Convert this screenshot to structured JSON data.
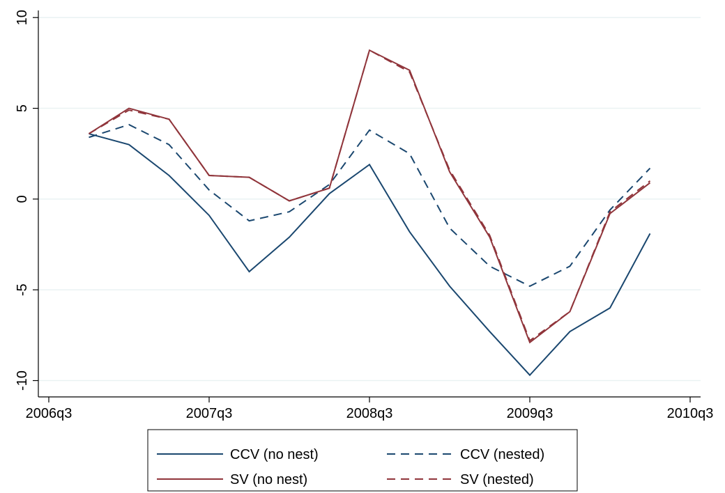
{
  "chart_data": {
    "type": "line",
    "x": [
      "2006q4",
      "2007q1",
      "2007q2",
      "2007q3",
      "2007q4",
      "2008q1",
      "2008q2",
      "2008q3",
      "2008q4",
      "2009q1",
      "2009q2",
      "2009q3",
      "2009q4",
      "2010q1",
      "2010q2"
    ],
    "xlim": [
      "2006q3",
      "2010q3"
    ],
    "xticks": [
      "2006q3",
      "2007q3",
      "2008q3",
      "2009q3",
      "2010q3"
    ],
    "ylim": [
      -10.9,
      10.2
    ],
    "yticks": [
      -10,
      -5,
      0,
      5,
      10
    ],
    "grid": true,
    "legend": "bottom",
    "series": [
      {
        "name": "CCV (no nest)",
        "color": "#1a476f",
        "dashed": false,
        "values": [
          3.6,
          3.0,
          1.3,
          -0.9,
          -4.0,
          -2.1,
          0.3,
          1.9,
          -1.8,
          -4.8,
          -7.3,
          -9.7,
          -7.3,
          -6.0,
          -1.9
        ]
      },
      {
        "name": "CCV (nested)",
        "color": "#1a476f",
        "dashed": true,
        "values": [
          3.4,
          4.1,
          3.0,
          0.5,
          -1.2,
          -0.7,
          0.8,
          3.8,
          2.5,
          -1.6,
          -3.7,
          -4.8,
          -3.7,
          -0.6,
          1.7
        ]
      },
      {
        "name": "SV (no nest)",
        "color": "#90353b",
        "dashed": false,
        "values": [
          3.6,
          5.0,
          4.4,
          1.3,
          1.2,
          -0.1,
          0.6,
          8.2,
          7.1,
          1.5,
          -2.1,
          -7.9,
          -6.2,
          -0.8,
          0.9
        ]
      },
      {
        "name": "SV (nested)",
        "color": "#90353b",
        "dashed": true,
        "values": [
          3.6,
          4.9,
          4.4,
          1.3,
          1.2,
          -0.1,
          0.6,
          8.2,
          7.0,
          1.6,
          -2.0,
          -7.8,
          -6.2,
          -0.7,
          1.0
        ]
      }
    ]
  }
}
